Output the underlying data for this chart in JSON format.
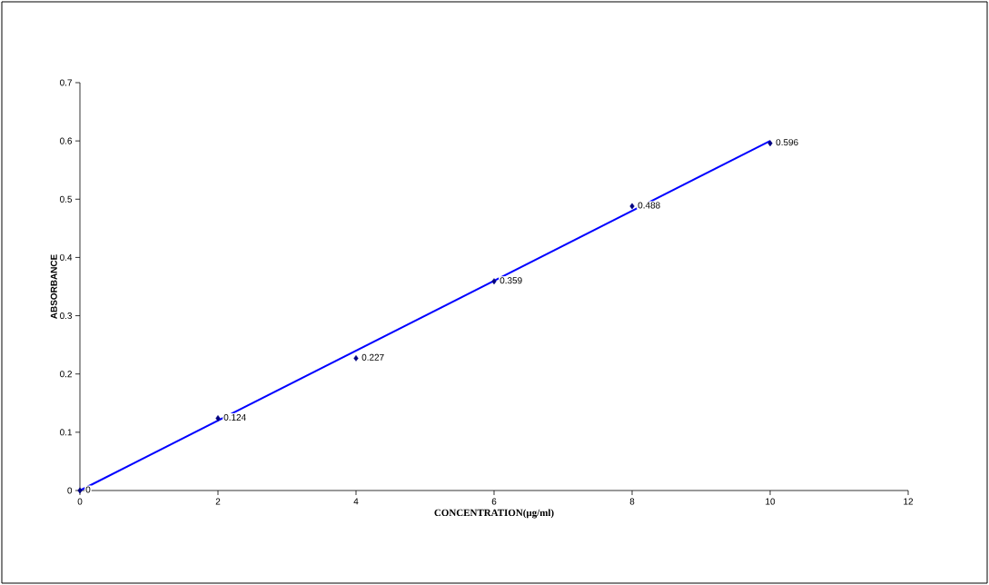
{
  "chart_data": {
    "type": "scatter",
    "xlabel": "CONCENTRATION(µg/ml)",
    "ylabel": "ABSORBANCE",
    "xlim": [
      0,
      12
    ],
    "ylim": [
      0,
      0.7
    ],
    "xticks": [
      0,
      2,
      4,
      6,
      8,
      10,
      12
    ],
    "yticks": [
      0,
      0.1,
      0.2,
      0.3,
      0.4,
      0.5,
      0.6,
      0.7
    ],
    "grid": false,
    "series": [
      {
        "color": "#000080",
        "marker": "diamond",
        "x": [
          0,
          2,
          4,
          6,
          8,
          10
        ],
        "values": [
          0,
          0.124,
          0.227,
          0.359,
          0.488,
          0.596
        ],
        "value_labels": [
          "0",
          "0.124",
          "0.227",
          "0.359",
          "0.488",
          "0.596"
        ]
      },
      {
        "type": "line",
        "color": "#0000ff",
        "marker": "none",
        "line_style": "solid",
        "x": [
          0,
          10
        ],
        "values": [
          0,
          0.6
        ]
      }
    ]
  }
}
